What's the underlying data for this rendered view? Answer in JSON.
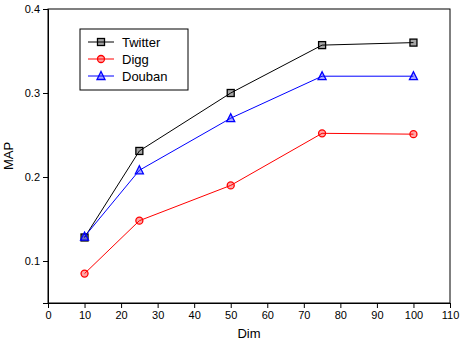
{
  "chart_data": {
    "type": "line",
    "x_label": "Dim",
    "y_label": "MAP",
    "x": [
      10,
      25,
      50,
      75,
      100
    ],
    "series": [
      {
        "name": "Twitter",
        "color": "#000000",
        "marker": "square",
        "values": [
          0.128,
          0.231,
          0.3,
          0.357,
          0.36
        ]
      },
      {
        "name": "Digg",
        "color": "#ff0000",
        "marker": "circle",
        "values": [
          0.085,
          0.148,
          0.19,
          0.252,
          0.251
        ]
      },
      {
        "name": "Douban",
        "color": "#0000ff",
        "marker": "triangle",
        "values": [
          0.129,
          0.208,
          0.27,
          0.32,
          0.32
        ]
      }
    ],
    "xlim": [
      0,
      110
    ],
    "xticks": [
      0,
      10,
      20,
      30,
      40,
      50,
      60,
      70,
      80,
      90,
      100,
      110
    ],
    "ylim": [
      0.05,
      0.4
    ],
    "yticks": [
      0.1,
      0.2,
      0.3,
      0.4
    ],
    "grid": false,
    "legend": "upper left"
  }
}
